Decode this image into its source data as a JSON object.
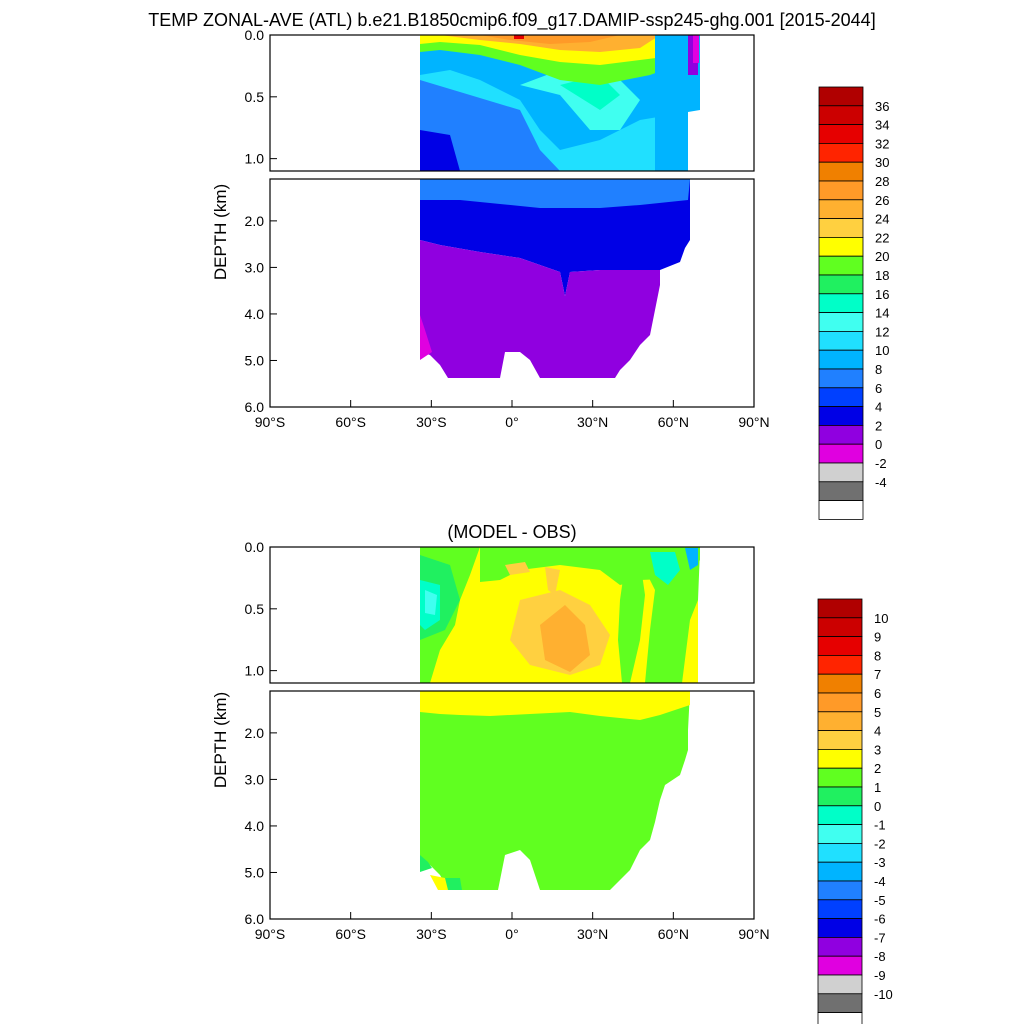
{
  "chart_data": [
    {
      "type": "heatmap",
      "title": "TEMP ZONAL-AVE (ATL) b.e21.B1850cmip6.f09_g17.DAMIP-ssp245-ghg.001 [2015-2044]",
      "ylabel": "DEPTH (km)",
      "xlabel": "",
      "x_ticks": [
        "90°S",
        "60°S",
        "30°S",
        "0°",
        "30°N",
        "60°N",
        "90°N"
      ],
      "xlim": [
        -90,
        90
      ],
      "upper_panel_yticks": [
        "0.0",
        "0.5",
        "1.0"
      ],
      "lower_panel_yticks": [
        "2.0",
        "3.0",
        "4.0",
        "5.0",
        "6.0"
      ],
      "upper_ylim": [
        0,
        1.1
      ],
      "lower_ylim": [
        1.1,
        6.0
      ],
      "colorbar": {
        "labels": [
          "36",
          "34",
          "32",
          "30",
          "28",
          "26",
          "24",
          "22",
          "20",
          "18",
          "16",
          "14",
          "12",
          "10",
          "8",
          "6",
          "4",
          "2",
          "0",
          "-2",
          "-4"
        ],
        "colors": [
          "#B00000",
          "#CC0000",
          "#E60000",
          "#FF2400",
          "#F08000",
          "#FF9A28",
          "#FFB030",
          "#FFD040",
          "#FFFF00",
          "#60FF20",
          "#20F060",
          "#00FFC8",
          "#40FFF0",
          "#20E0FF",
          "#00B4FF",
          "#2080FF",
          "#0040FF",
          "#0000E6",
          "#9000E0",
          "#E000E0",
          "#D0D0D0",
          "#707070",
          "#FFFFFF"
        ]
      }
    },
    {
      "type": "heatmap",
      "title": "(MODEL - OBS)",
      "ylabel": "DEPTH (km)",
      "xlabel": "",
      "x_ticks": [
        "90°S",
        "60°S",
        "30°S",
        "0°",
        "30°N",
        "60°N",
        "90°N"
      ],
      "xlim": [
        -90,
        90
      ],
      "upper_panel_yticks": [
        "0.0",
        "0.5",
        "1.0"
      ],
      "lower_panel_yticks": [
        "2.0",
        "3.0",
        "4.0",
        "5.0",
        "6.0"
      ],
      "upper_ylim": [
        0,
        1.1
      ],
      "lower_ylim": [
        1.1,
        6.0
      ],
      "colorbar": {
        "labels": [
          "10",
          "9",
          "8",
          "7",
          "6",
          "5",
          "4",
          "3",
          "2",
          "1",
          "0",
          "-1",
          "-2",
          "-3",
          "-4",
          "-5",
          "-6",
          "-7",
          "-8",
          "-9",
          "-10"
        ],
        "colors": [
          "#B00000",
          "#CC0000",
          "#E60000",
          "#FF2400",
          "#F08000",
          "#FF9A28",
          "#FFB030",
          "#FFD040",
          "#FFFF00",
          "#60FF20",
          "#20F060",
          "#00FFC8",
          "#40FFF0",
          "#20E0FF",
          "#00B4FF",
          "#2080FF",
          "#0040FF",
          "#0000E6",
          "#9000E0",
          "#E000E0",
          "#D0D0D0",
          "#707070",
          "#FFFFFF"
        ]
      }
    }
  ]
}
